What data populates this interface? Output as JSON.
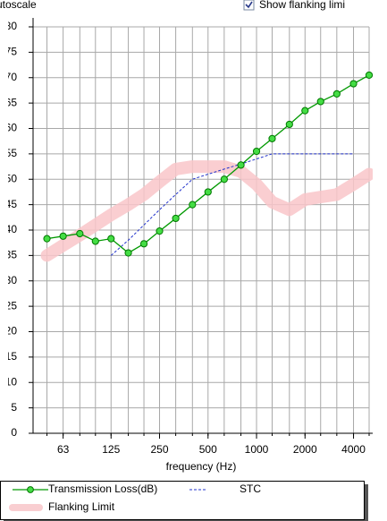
{
  "chart_data": {
    "type": "line",
    "autoscale_label": "utoscale",
    "flanking_checkbox_label": "Show flanking limi",
    "xlabel": "frequency (Hz)",
    "xscale": "log",
    "grid": true,
    "x": [
      50,
      63,
      80,
      100,
      125,
      160,
      200,
      250,
      315,
      400,
      500,
      630,
      800,
      1000,
      1250,
      1600,
      2000,
      2500,
      3150,
      4000,
      5000
    ],
    "xlim": [
      41,
      5000
    ],
    "xticks": [
      63,
      125,
      250,
      500,
      1000,
      2000,
      4000
    ],
    "ylim": [
      0,
      80
    ],
    "yticks": [
      0,
      5,
      10,
      15,
      20,
      25,
      30,
      35,
      40,
      45,
      50,
      55,
      60,
      65,
      70,
      75,
      80
    ],
    "series": [
      {
        "name": "Flanking Limit",
        "color": "#f9c6c9",
        "style": "band",
        "values": [
          35,
          37,
          39,
          41,
          43,
          45,
          47,
          49.5,
          52,
          52.5,
          52.5,
          52.5,
          51.5,
          49,
          45.5,
          44,
          46,
          46.5,
          47,
          49,
          51
        ]
      },
      {
        "name": "STC",
        "color": "#2233cc",
        "style": "dashed",
        "values": [
          null,
          null,
          null,
          null,
          35,
          38,
          41,
          44,
          47,
          50,
          51,
          52,
          53,
          54,
          55,
          55,
          55,
          55,
          55,
          55,
          null
        ]
      },
      {
        "name": "Transmission Loss(dB)",
        "color": "#009900",
        "style": "markers",
        "values": [
          38.3,
          38.8,
          39.3,
          37.8,
          38.3,
          35.5,
          37.3,
          39.8,
          42.3,
          45,
          47.5,
          50,
          52.8,
          55.5,
          58,
          60.8,
          63.5,
          65.3,
          66.8,
          68.8,
          70.5
        ]
      }
    ]
  }
}
